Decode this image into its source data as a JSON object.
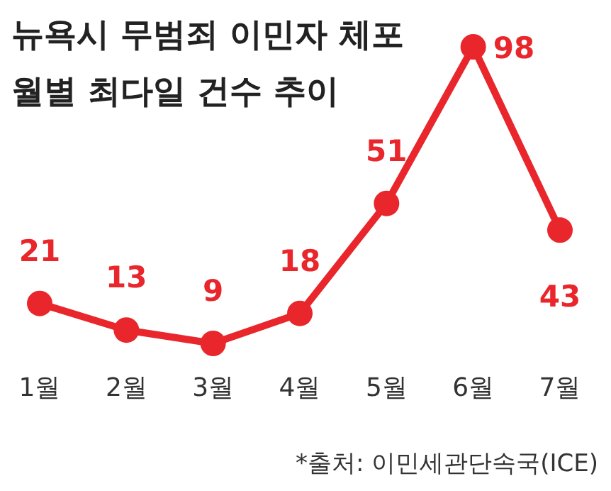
{
  "chart_data": {
    "type": "line",
    "title": "뉴욕시 무범죄 이민자 체포\n월별 최다일 건수 추이",
    "categories": [
      "1월",
      "2월",
      "3월",
      "4월",
      "5월",
      "6월",
      "7월"
    ],
    "series": [
      {
        "color": "#e8262b",
        "values": [
          21,
          13,
          9,
          18,
          51,
          98,
          43
        ]
      }
    ],
    "data_labels": true,
    "marker": "circle",
    "annotations": [
      "*출처: 이민세관단속국(ICE)"
    ]
  }
}
